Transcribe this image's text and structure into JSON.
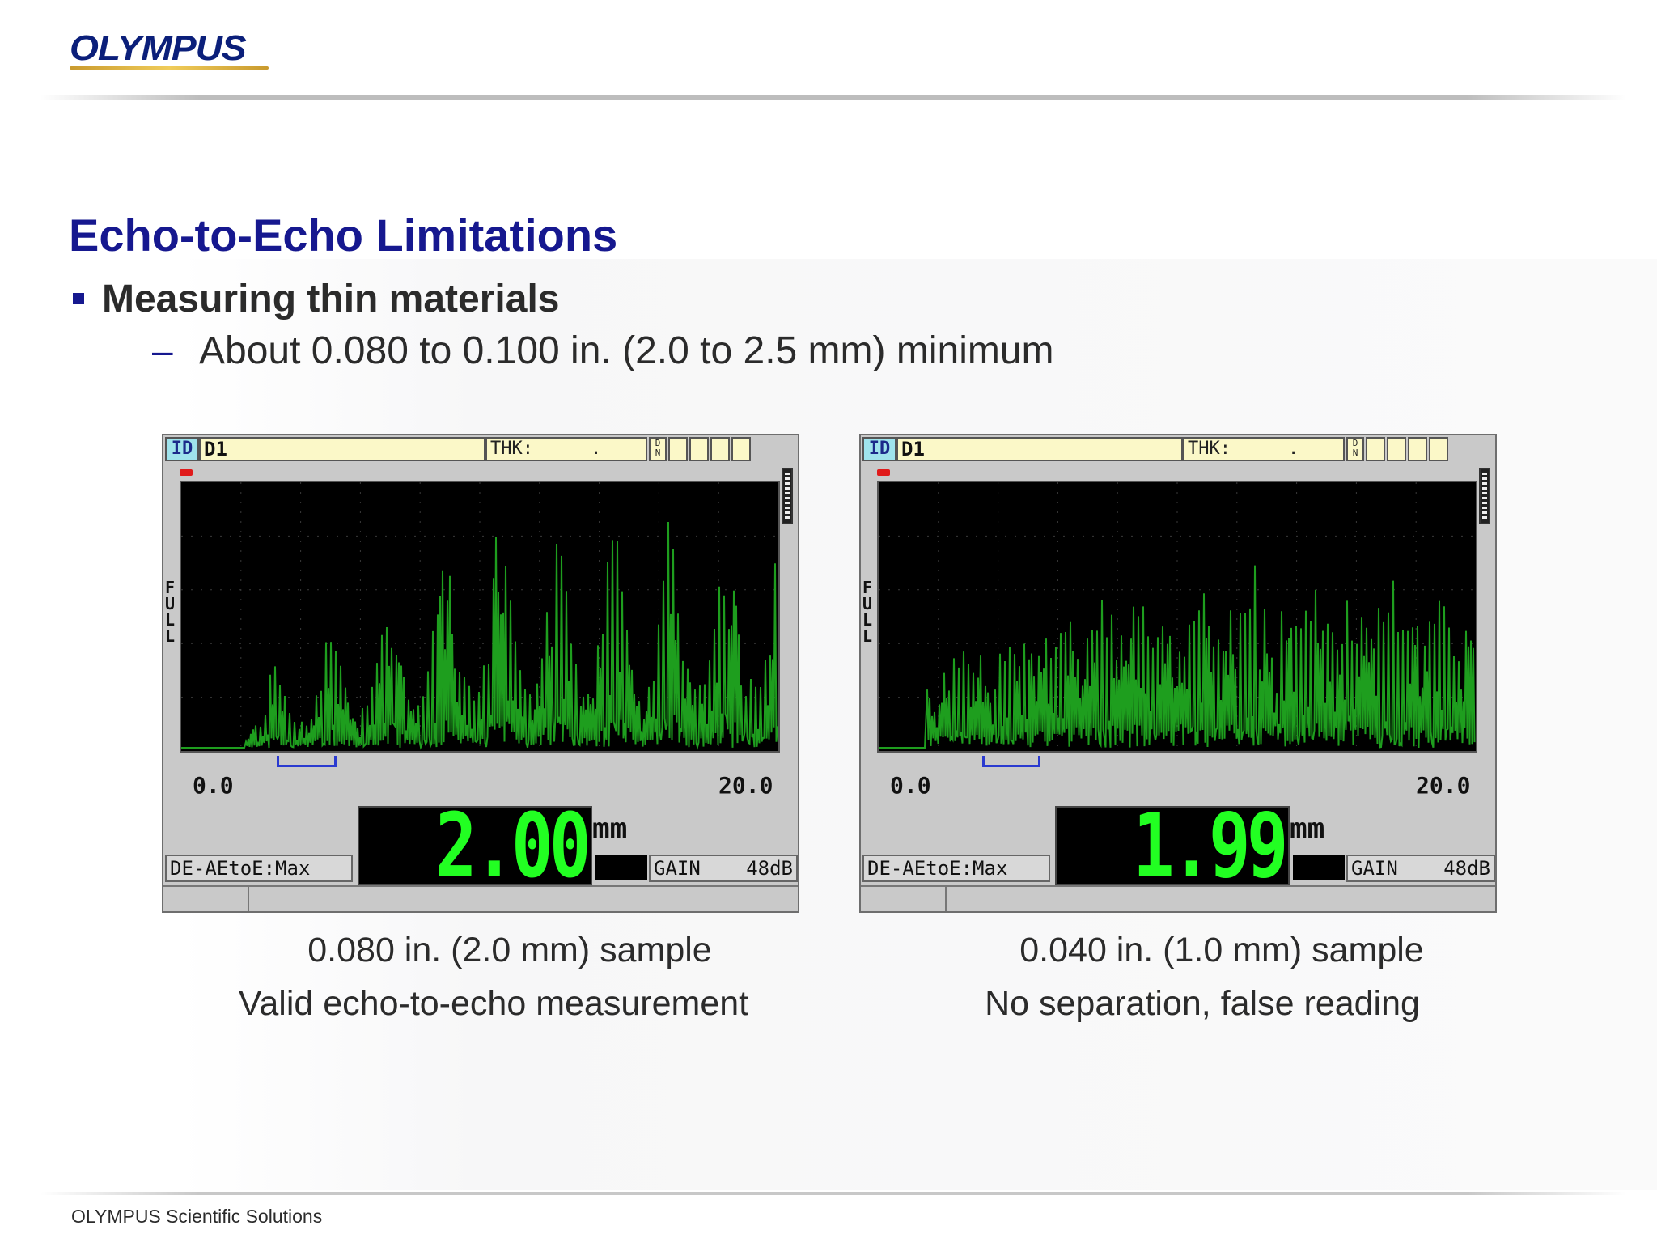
{
  "brand": {
    "logo_text": "OLYMPUS",
    "footer": "OLYMPUS Scientific Solutions"
  },
  "slide": {
    "title": "Echo-to-Echo Limitations",
    "bullet": "Measuring thin materials",
    "sub_dash": "–",
    "sub_bullet": "About 0.080 to 0.100 in. (2.0 to 2.5 mm) minimum"
  },
  "screens": [
    {
      "id_label": "ID",
      "file_id": "D1",
      "thk_label": "THK:",
      "thk_value": ".",
      "dn_label": "D N",
      "range_label": "FULL",
      "axis_min": "0.0",
      "axis_max": "20.0",
      "mode": "DE-AEtoE:Max",
      "reading": "2.00",
      "unit": "mm",
      "gain_label": "GAIN",
      "gain_value": "48dB",
      "caption1": "0.080 in. (2.0 mm) sample",
      "caption2": "Valid echo-to-echo measurement",
      "waveform_color": "#1e9e1e",
      "readout_color": "#22ff22"
    },
    {
      "id_label": "ID",
      "file_id": "D1",
      "thk_label": "THK:",
      "thk_value": ".",
      "dn_label": "D N",
      "range_label": "FULL",
      "axis_min": "0.0",
      "axis_max": "20.0",
      "mode": "DE-AEtoE:Max",
      "reading": "1.99",
      "unit": "mm",
      "gain_label": "GAIN",
      "gain_value": "48dB",
      "caption1": "0.040 in. (1.0 mm) sample",
      "caption2": "No separation, false reading",
      "waveform_color": "#1e9e1e",
      "readout_color": "#22ff22"
    }
  ],
  "colors": {
    "title": "#16188f",
    "text": "#2b2b2b",
    "logo": "#0b1f7a",
    "logo_underline": "#e0b646"
  }
}
